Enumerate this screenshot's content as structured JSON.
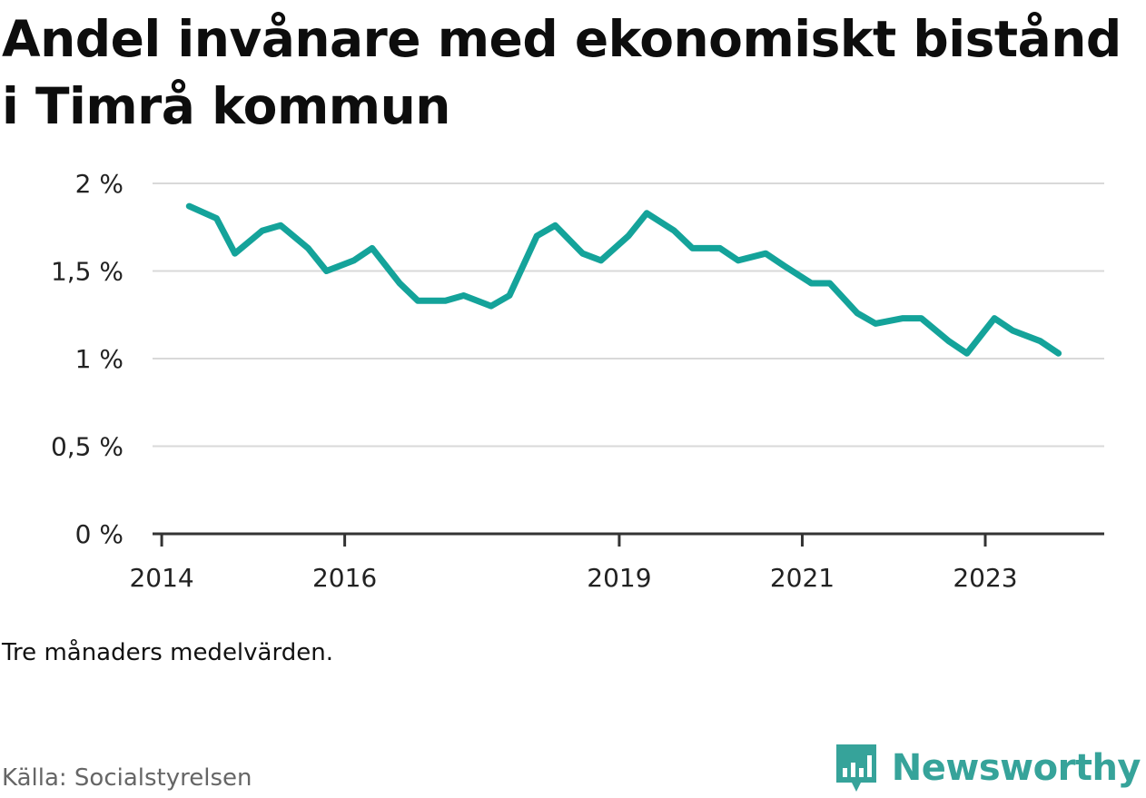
{
  "title": "Andel invånare med ekonomiskt bistånd i Timrå kommun",
  "note": "Tre månaders medelvärden.",
  "source": "Källa: Socialstyrelsen",
  "brand": {
    "name": "Newsworthy",
    "icon": "newsworthy-logo-icon",
    "color": "#36a39a"
  },
  "colors": {
    "line": "#14a39a",
    "grid": "#d9d9d9",
    "axis": "#333333"
  },
  "chart_data": {
    "type": "line",
    "title": "Andel invånare med ekonomiskt bistånd i Timrå kommun",
    "xlabel": "",
    "ylabel": "",
    "xlim": [
      2013.9,
      2024.3
    ],
    "ylim": [
      0,
      2
    ],
    "y_ticks": [
      {
        "value": 0,
        "label": "0 %"
      },
      {
        "value": 0.5,
        "label": "0,5 %"
      },
      {
        "value": 1,
        "label": "1 %"
      },
      {
        "value": 1.5,
        "label": "1,5 %"
      },
      {
        "value": 2,
        "label": "2 %"
      }
    ],
    "x_ticks": [
      {
        "value": 2014,
        "label": "2014"
      },
      {
        "value": 2016,
        "label": "2016"
      },
      {
        "value": 2019,
        "label": "2019"
      },
      {
        "value": 2021,
        "label": "2021"
      },
      {
        "value": 2023,
        "label": "2023"
      }
    ],
    "grid": true,
    "legend": "none",
    "series": [
      {
        "x": [
          2014.3,
          2014.6,
          2014.8,
          2015.1,
          2015.3,
          2015.6,
          2015.8,
          2016.1,
          2016.3,
          2016.6,
          2016.8,
          2017.1,
          2017.3,
          2017.6,
          2017.8,
          2018.1,
          2018.3,
          2018.6,
          2018.8,
          2019.1,
          2019.3,
          2019.6,
          2019.8,
          2020.1,
          2020.3,
          2020.6,
          2020.8,
          2021.1,
          2021.3,
          2021.6,
          2021.8,
          2022.1,
          2022.3,
          2022.6,
          2022.8,
          2023.1,
          2023.3,
          2023.6,
          2023.8
        ],
        "values": [
          1.87,
          1.8,
          1.6,
          1.73,
          1.76,
          1.63,
          1.5,
          1.56,
          1.63,
          1.43,
          1.33,
          1.33,
          1.36,
          1.3,
          1.36,
          1.7,
          1.76,
          1.6,
          1.56,
          1.7,
          1.83,
          1.73,
          1.63,
          1.63,
          1.56,
          1.6,
          1.53,
          1.43,
          1.43,
          1.26,
          1.2,
          1.23,
          1.23,
          1.1,
          1.03,
          1.23,
          1.16,
          1.1,
          1.03
        ]
      }
    ]
  }
}
